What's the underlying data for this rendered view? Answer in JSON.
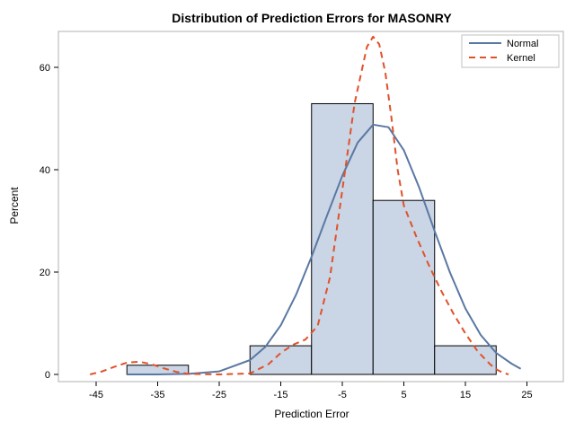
{
  "chart_data": {
    "type": "histogram",
    "title": "Distribution of Prediction Errors  for MASONRY",
    "xlabel": "Prediction Error",
    "ylabel": "Percent",
    "xlim": [
      -50,
      30
    ],
    "ylim": [
      0,
      67
    ],
    "x_ticks": [
      -45,
      -35,
      -25,
      -15,
      -5,
      5,
      15,
      25
    ],
    "y_ticks": [
      0,
      20,
      40,
      60
    ],
    "bins": [
      {
        "from": -40,
        "to": -30,
        "percent": 1.8
      },
      {
        "from": -30,
        "to": -20,
        "percent": 0
      },
      {
        "from": -20,
        "to": -10,
        "percent": 5.6
      },
      {
        "from": -10,
        "to": 0,
        "percent": 52.9
      },
      {
        "from": 0,
        "to": 10,
        "percent": 34.0
      },
      {
        "from": 10,
        "to": 20,
        "percent": 5.6
      }
    ],
    "bar_fill": "#cad5e5",
    "bar_stroke": "#000000",
    "series": [
      {
        "name": "Normal",
        "style": "solid",
        "color": "#5a78a3",
        "points": [
          [
            -40,
            0.0
          ],
          [
            -35,
            0.0
          ],
          [
            -30,
            0.1
          ],
          [
            -25,
            0.6
          ],
          [
            -20,
            2.8
          ],
          [
            -17.5,
            5.4
          ],
          [
            -15,
            9.6
          ],
          [
            -12.5,
            15.6
          ],
          [
            -10,
            23.0
          ],
          [
            -7.5,
            31.0
          ],
          [
            -5,
            38.8
          ],
          [
            -2.5,
            45.3
          ],
          [
            0,
            48.8
          ],
          [
            2.5,
            48.3
          ],
          [
            5,
            43.8
          ],
          [
            7.5,
            36.5
          ],
          [
            10,
            28.0
          ],
          [
            12.5,
            19.9
          ],
          [
            15,
            12.9
          ],
          [
            17.5,
            7.7
          ],
          [
            20,
            4.2
          ],
          [
            22.5,
            2.1
          ],
          [
            24,
            1.1
          ]
        ]
      },
      {
        "name": "Kernel",
        "style": "dashed",
        "color": "#e0522a",
        "points": [
          [
            -46,
            0.0
          ],
          [
            -44,
            0.6
          ],
          [
            -42,
            1.5
          ],
          [
            -40,
            2.3
          ],
          [
            -38,
            2.5
          ],
          [
            -36,
            2.0
          ],
          [
            -34,
            1.2
          ],
          [
            -32,
            0.5
          ],
          [
            -30,
            0.1
          ],
          [
            -25,
            0.0
          ],
          [
            -20,
            0.2
          ],
          [
            -17,
            2.0
          ],
          [
            -15,
            4.2
          ],
          [
            -13,
            5.8
          ],
          [
            -11,
            6.8
          ],
          [
            -9,
            9.5
          ],
          [
            -7,
            19.0
          ],
          [
            -5,
            36.0
          ],
          [
            -3,
            53.0
          ],
          [
            -1,
            64.0
          ],
          [
            0,
            66.0
          ],
          [
            1,
            64.5
          ],
          [
            2,
            59.0
          ],
          [
            3,
            50.0
          ],
          [
            4,
            40.0
          ],
          [
            5,
            33.0
          ],
          [
            7,
            27.0
          ],
          [
            9,
            21.5
          ],
          [
            11,
            16.5
          ],
          [
            13,
            12.0
          ],
          [
            15,
            8.0
          ],
          [
            17,
            4.5
          ],
          [
            19,
            2.0
          ],
          [
            20,
            1.0
          ],
          [
            21,
            0.4
          ],
          [
            22,
            0.0
          ]
        ]
      }
    ],
    "legend": {
      "position": "top-right",
      "entries": [
        "Normal",
        "Kernel"
      ]
    }
  }
}
